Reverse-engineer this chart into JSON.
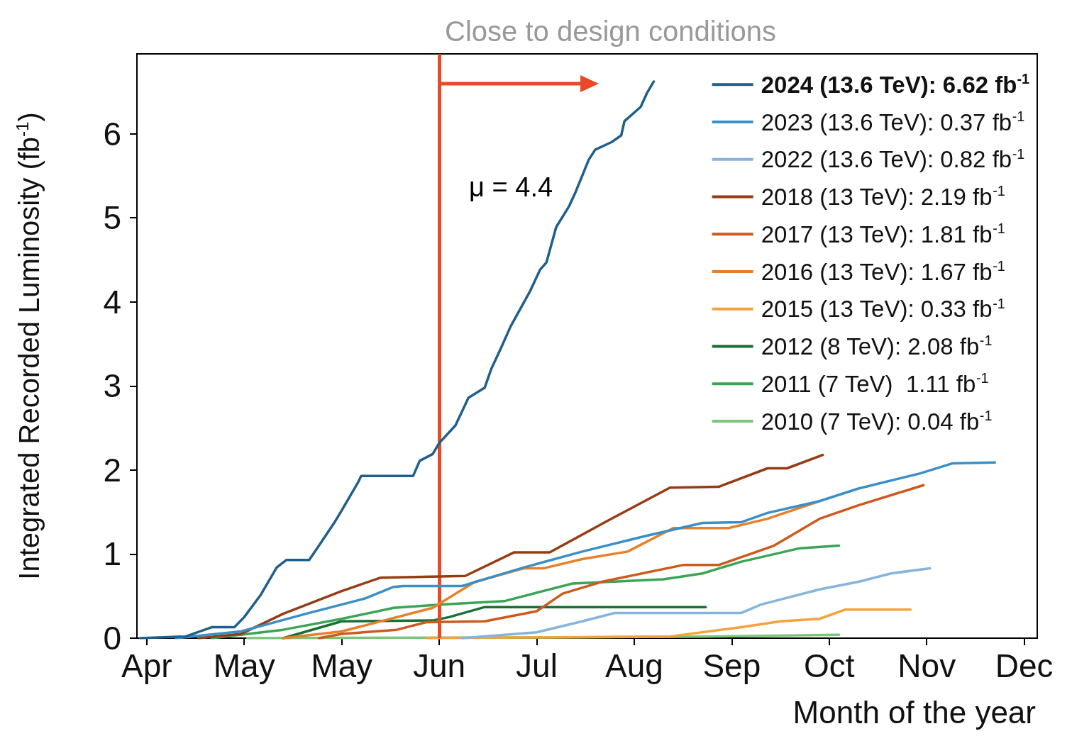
{
  "chart_data": {
    "type": "line",
    "xlabel": "Month of the year",
    "ylabel": "Integrated Recorded Luminosity (fb$^{-1}$)",
    "xlim": [
      "--03-29",
      "--12-31"
    ],
    "xticks": [
      {
        "value": "--04-01",
        "label": "Apr"
      },
      {
        "value": "--05-01",
        "label": "May"
      },
      {
        "value": "--05-31",
        "label": "May"
      },
      {
        "value": "--06-30",
        "label": "Jun"
      },
      {
        "value": "--07-30",
        "label": "Jul"
      },
      {
        "value": "--08-29",
        "label": "Aug"
      },
      {
        "value": "--09-28",
        "label": "Sep"
      },
      {
        "value": "--10-28",
        "label": "Oct"
      },
      {
        "value": "--11-27",
        "label": "Nov"
      },
      {
        "value": "--12-27",
        "label": "Dec"
      }
    ],
    "ylim": [
      0,
      6.95
    ],
    "yticks": [
      0,
      1,
      2,
      3,
      4,
      5,
      6
    ],
    "legend": "top right",
    "series": [
      {
        "name": "2024 (13.6 TeV): 6.62 fb$^{-1}$",
        "color": "#1f5f8b",
        "x": [
          "--03-30",
          "--04-13",
          "--04-21",
          "--04-28",
          "--05-01",
          "--05-06",
          "--05-11",
          "--05-14",
          "--05-21",
          "--05-24",
          "--05-29",
          "--05-31",
          "--06-05",
          "--06-06",
          "--06-22",
          "--06-24",
          "--06-28",
          "--06-30",
          "--07-05",
          "--07-09",
          "--07-14",
          "--07-16",
          "--07-19",
          "--07-22",
          "--07-28",
          "--07-31",
          "--08-02",
          "--08-05",
          "--08-09",
          "--08-11",
          "--08-15",
          "--08-17",
          "--08-22",
          "--08-25",
          "--08-26",
          "--08-31",
          "--09-02",
          "--09-04"
        ],
        "values": [
          0,
          0.02,
          0.13,
          0.13,
          0.25,
          0.51,
          0.84,
          0.93,
          0.93,
          1.1,
          1.39,
          1.52,
          1.85,
          1.93,
          1.93,
          2.11,
          2.19,
          2.32,
          2.53,
          2.86,
          2.98,
          3.2,
          3.45,
          3.71,
          4.13,
          4.38,
          4.47,
          4.89,
          5.14,
          5.31,
          5.69,
          5.81,
          5.9,
          5.98,
          6.15,
          6.32,
          6.49,
          6.62
        ]
      },
      {
        "name": "2023 (13.6 TeV): 0.37 fb$^{-1}$",
        "color": "#3a8fc7",
        "x": [
          "--04-10",
          "--04-30",
          "--05-20",
          "--06-07",
          "--06-16",
          "--06-19",
          "--07-07",
          "--07-26",
          "--08-13",
          "--09-01",
          "--09-19",
          "--10-01",
          "--10-09",
          "--10-25",
          "--11-06",
          "--11-25",
          "--12-05",
          "--12-18"
        ],
        "values": [
          0,
          0.08,
          0.29,
          0.47,
          0.61,
          0.62,
          0.62,
          0.84,
          1.03,
          1.21,
          1.37,
          1.38,
          1.49,
          1.63,
          1.78,
          1.96,
          2.08,
          2.09
        ]
      },
      {
        "name": "2022 (13.6 TeV): 0.82 fb$^{-1}$",
        "color": "#86b4dc",
        "x": [
          "--07-07",
          "--07-30",
          "--08-13",
          "--08-23",
          "--10-01",
          "--10-07",
          "--10-25",
          "--11-06",
          "--11-16",
          "--11-28"
        ],
        "values": [
          0,
          0.07,
          0.2,
          0.3,
          0.3,
          0.4,
          0.58,
          0.67,
          0.77,
          0.83
        ]
      },
      {
        "name": "2018 (13 TeV): 2.19 fb$^{-1}$",
        "color": "#963c14",
        "x": [
          "--04-17",
          "--04-30",
          "--05-13",
          "--05-31",
          "--06-12",
          "--07-08",
          "--07-23",
          "--08-03",
          "--08-21",
          "--09-09",
          "--09-24",
          "--10-09",
          "--10-15",
          "--10-26"
        ],
        "values": [
          0,
          0.05,
          0.29,
          0.56,
          0.72,
          0.74,
          1.02,
          1.02,
          1.4,
          1.79,
          1.8,
          2.02,
          2.02,
          2.18
        ]
      },
      {
        "name": "2017 (13 TeV): 1.81 fb$^{-1}$",
        "color": "#cc5a1e",
        "x": [
          "--05-24",
          "--05-31",
          "--06-17",
          "--06-26",
          "--07-14",
          "--07-30",
          "--08-07",
          "--08-19",
          "--09-13",
          "--09-24",
          "--10-11",
          "--10-25",
          "--11-06",
          "--11-26"
        ],
        "values": [
          0,
          0.05,
          0.1,
          0.19,
          0.2,
          0.32,
          0.53,
          0.67,
          0.87,
          0.87,
          1.1,
          1.42,
          1.58,
          1.82
        ]
      },
      {
        "name": "2016 (13 TeV): 1.67 fb$^{-1}$",
        "color": "#e8802a",
        "x": [
          "--05-13",
          "--05-31",
          "--06-28",
          "--07-11",
          "--07-26",
          "--08-01",
          "--08-13",
          "--08-27",
          "--09-10",
          "--09-27",
          "--10-09",
          "--10-25"
        ],
        "values": [
          0,
          0.08,
          0.36,
          0.67,
          0.83,
          0.83,
          0.94,
          1.03,
          1.31,
          1.31,
          1.42,
          1.63
        ]
      },
      {
        "name": "2015 (13 TeV): 0.33 fb$^{-1}$",
        "color": "#f5a23c",
        "x": [
          "--06-26",
          "--09-09",
          "--10-01",
          "--10-13",
          "--10-25",
          "--11-02",
          "--11-22"
        ],
        "values": [
          0,
          0.02,
          0.13,
          0.2,
          0.23,
          0.34,
          0.34
        ]
      },
      {
        "name": "2012 (8 TeV): 2.08 fb$^{-1}$",
        "color": "#1a7034",
        "x": [
          "--05-13",
          "--05-31",
          "--06-28",
          "--07-03",
          "--07-14",
          "--09-20"
        ],
        "values": [
          0,
          0.2,
          0.21,
          0.25,
          0.37,
          0.37
        ]
      },
      {
        "name": "2011 (7 TeV)  1.11 fb$^{-1}$",
        "color": "#3aa655",
        "x": [
          "--04-21",
          "--05-13",
          "--05-31",
          "--06-16",
          "--07-01",
          "--07-20",
          "--07-31",
          "--08-10",
          "--09-07",
          "--09-19",
          "--10-01",
          "--10-19",
          "--10-31"
        ],
        "values": [
          0,
          0.1,
          0.23,
          0.36,
          0.4,
          0.44,
          0.55,
          0.65,
          0.7,
          0.77,
          0.91,
          1.07,
          1.1
        ]
      },
      {
        "name": "2010 (7 TeV): 0.04 fb$^{-1}$",
        "color": "#7cc47a",
        "x": [
          "--05-02",
          "--08-09",
          "--09-21",
          "--10-31"
        ],
        "values": [
          0,
          0.01,
          0.02,
          0.04
        ]
      }
    ],
    "ref_lines": [
      {
        "axis": "x",
        "value": "--06-30",
        "label": "Close to design conditions",
        "color": "#e84a27"
      }
    ],
    "annotations": [
      "μ = 4.4"
    ]
  }
}
